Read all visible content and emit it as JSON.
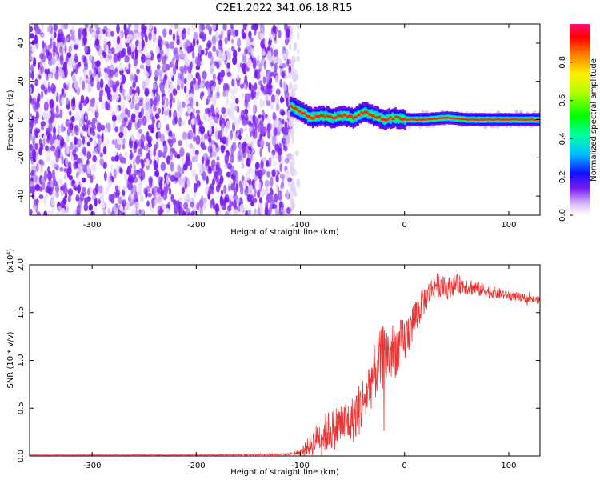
{
  "title": "C2E1.2022.341.06.18.R15",
  "chart_data": [
    {
      "type": "heatmap",
      "xlabel": "Height of straight line (km)",
      "ylabel": "Frequency (Hz)",
      "xlim": [
        -360,
        130
      ],
      "ylim": [
        -50,
        50
      ],
      "xticks": [
        -300,
        -200,
        -100,
        0,
        100
      ],
      "yticks": [
        -40,
        -20,
        0,
        20,
        40
      ],
      "colorbar": {
        "label": "Normalized spectral amplitude",
        "ticks": [
          "0.0",
          "0.2",
          "0.4",
          "0.6",
          "0.8"
        ],
        "tick_values": [
          0.0,
          0.2,
          0.4,
          0.6,
          0.8
        ],
        "range": [
          0,
          1
        ],
        "colormap": "rainbow"
      },
      "features": {
        "noise_region_x": [
          -360,
          -110
        ],
        "signal_ridge": {
          "x": [
            -110,
            -100,
            -90,
            -80,
            -70,
            -60,
            -50,
            -40,
            -30,
            -20,
            -10,
            0,
            20,
            40,
            60,
            80,
            100,
            130
          ],
          "y": [
            7,
            4,
            1,
            2,
            1,
            2,
            1,
            4,
            2,
            0,
            1,
            0,
            0,
            1,
            0,
            0,
            0,
            0
          ]
        }
      }
    },
    {
      "type": "line",
      "xlabel": "Height of straight line (km)",
      "ylabel": "SNR (10 * v/v)",
      "multiplier_label": "(x10⁴)",
      "xlim": [
        -360,
        130
      ],
      "ylim": [
        0,
        2.0
      ],
      "xticks": [
        -300,
        -200,
        -100,
        0,
        100
      ],
      "yticks": [
        "0.0",
        "0.5",
        "1.0",
        "1.5",
        "2.0"
      ],
      "ytick_values": [
        0,
        0.5,
        1.0,
        1.5,
        2.0
      ],
      "series": [
        {
          "color": "#ee3333",
          "x": [
            -360,
            -300,
            -200,
            -110,
            -100,
            -90,
            -80,
            -70,
            -60,
            -50,
            -40,
            -30,
            -20,
            -10,
            0,
            10,
            20,
            30,
            40,
            50,
            60,
            70,
            80,
            90,
            100,
            110,
            120,
            130
          ],
          "y": [
            0.01,
            0.01,
            0.01,
            0.02,
            0.04,
            0.12,
            0.22,
            0.28,
            0.33,
            0.38,
            0.55,
            0.85,
            1.05,
            1.1,
            1.2,
            1.45,
            1.65,
            1.8,
            1.75,
            1.8,
            1.78,
            1.75,
            1.72,
            1.7,
            1.68,
            1.66,
            1.64,
            1.63
          ],
          "noise": [
            0.002,
            0.002,
            0.003,
            0.01,
            0.03,
            0.12,
            0.2,
            0.22,
            0.25,
            0.25,
            0.3,
            0.3,
            0.35,
            0.3,
            0.25,
            0.2,
            0.15,
            0.12,
            0.12,
            0.1,
            0.1,
            0.08,
            0.07,
            0.06,
            0.05,
            0.05,
            0.04,
            0.04
          ]
        }
      ]
    }
  ]
}
